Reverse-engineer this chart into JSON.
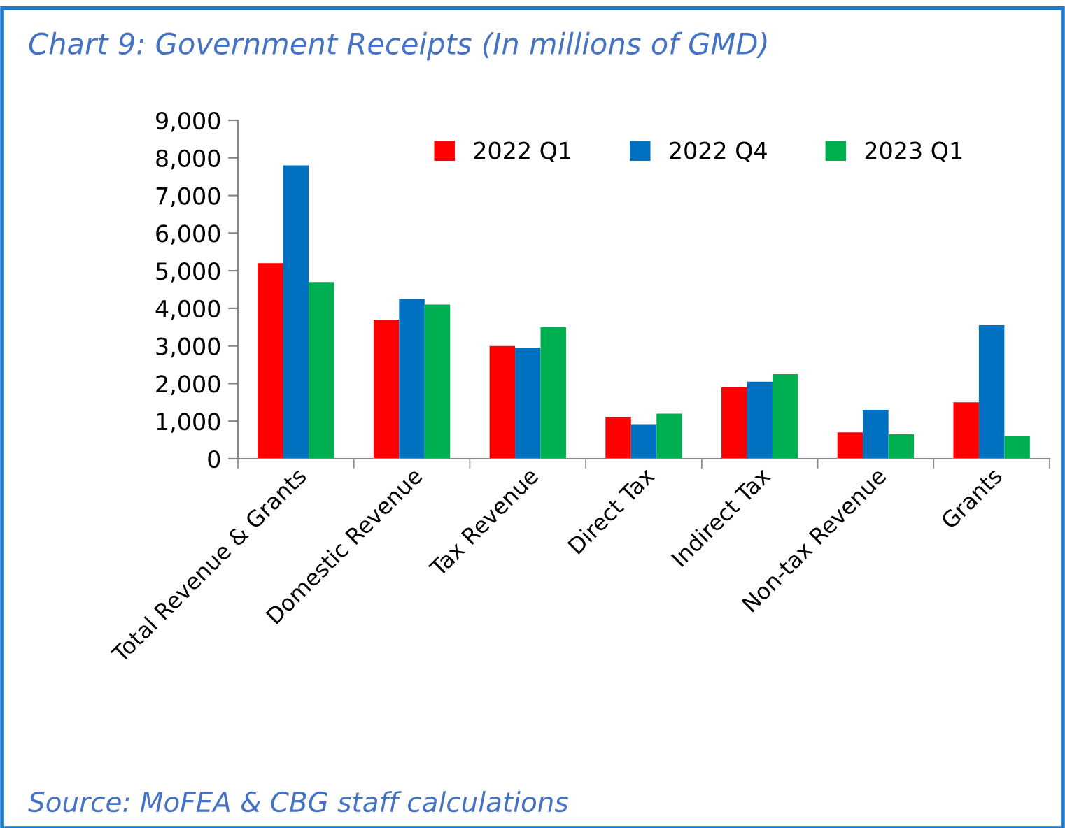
{
  "chart_data": {
    "type": "bar",
    "title": "Chart 9: Government Receipts (In millions of GMD)",
    "categories": [
      "Total Revenue & Grants",
      "Domestic Revenue",
      "Tax Revenue",
      "Direct Tax",
      "Indirect Tax",
      "Non-tax Revenue",
      "Grants"
    ],
    "series": [
      {
        "name": "2022 Q1",
        "color": "#ff0000",
        "values": [
          5200,
          3700,
          3000,
          1100,
          1900,
          700,
          1500
        ]
      },
      {
        "name": "2022 Q4",
        "color": "#0070c0",
        "values": [
          7800,
          4250,
          2950,
          900,
          2050,
          1300,
          3550
        ]
      },
      {
        "name": "2023 Q1",
        "color": "#00b050",
        "values": [
          4700,
          4100,
          3500,
          1200,
          2250,
          650,
          600
        ]
      }
    ],
    "ylim": [
      0,
      9000
    ],
    "yticks": [
      {
        "value": 0,
        "label": "0"
      },
      {
        "value": 1000,
        "label": "1,000"
      },
      {
        "value": 2000,
        "label": "2,000"
      },
      {
        "value": 3000,
        "label": "3,000"
      },
      {
        "value": 4000,
        "label": "4,000"
      },
      {
        "value": 5000,
        "label": "5,000"
      },
      {
        "value": 6000,
        "label": "6,000"
      },
      {
        "value": 7000,
        "label": "7,000"
      },
      {
        "value": 8000,
        "label": "8,000"
      },
      {
        "value": 9000,
        "label": "9,000"
      }
    ],
    "grid": false,
    "legend": "top right",
    "annotations": [
      "Source: MoFEA & CBG staff calculations"
    ]
  }
}
